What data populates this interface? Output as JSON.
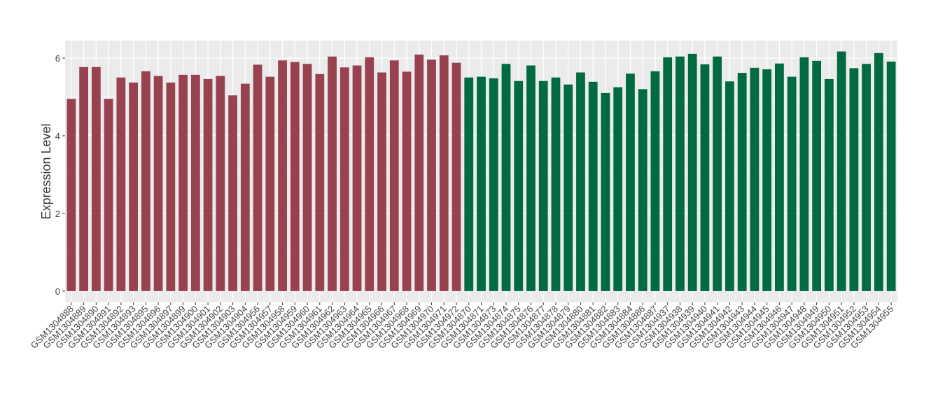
{
  "chart_data": {
    "type": "bar",
    "y_label": "Expression Level",
    "ylim": [
      -0.29,
      6.45
    ],
    "yticks": [
      0,
      2,
      4,
      6
    ],
    "grid": true,
    "series": [
      {
        "color": "#984250",
        "categories": [
          "GSM1304888",
          "GSM1304889",
          "GSM1304890",
          "GSM1304891",
          "GSM1304892",
          "GSM1304893",
          "GSM1304895",
          "GSM1304896",
          "GSM1304897",
          "GSM1304899",
          "GSM1304900",
          "GSM1304901",
          "GSM1304902",
          "GSM1304903",
          "GSM1304904",
          "GSM1304956",
          "GSM1304957",
          "GSM1304958",
          "GSM1304959",
          "GSM1304960",
          "GSM1304961",
          "GSM1304962",
          "GSM1304963",
          "GSM1304964",
          "GSM1304965",
          "GSM1304966",
          "GSM1304967",
          "GSM1304968",
          "GSM1304969",
          "GSM1304970",
          "GSM1304971",
          "GSM1304972"
        ],
        "values": [
          4.95,
          5.77,
          5.77,
          4.95,
          5.5,
          5.37,
          5.66,
          5.54,
          5.37,
          5.57,
          5.57,
          5.46,
          5.54,
          5.04,
          5.34,
          5.83,
          5.52,
          5.94,
          5.9,
          5.85,
          5.59,
          6.04,
          5.76,
          5.81,
          6.02,
          5.63,
          5.94,
          5.65,
          6.09,
          5.96,
          6.07,
          5.88
        ]
      },
      {
        "color": "#006B40",
        "categories": [
          "GSM1304870",
          "GSM1304871",
          "GSM1304873",
          "GSM1304874",
          "GSM1304875",
          "GSM1304876",
          "GSM1304877",
          "GSM1304878",
          "GSM1304879",
          "GSM1304880",
          "GSM1304881",
          "GSM1304882",
          "GSM1304883",
          "GSM1304884",
          "GSM1304886",
          "GSM1304887",
          "GSM1304937",
          "GSM1304938",
          "GSM1304939",
          "GSM1304940",
          "GSM1304941",
          "GSM1304942",
          "GSM1304943",
          "GSM1304944",
          "GSM1304945",
          "GSM1304946",
          "GSM1304947",
          "GSM1304948",
          "GSM1304949",
          "GSM1304950",
          "GSM1304951",
          "GSM1304952",
          "GSM1304953",
          "GSM1304954",
          "GSM1304955"
        ],
        "values": [
          5.5,
          5.52,
          5.48,
          5.85,
          5.41,
          5.81,
          5.41,
          5.5,
          5.32,
          5.63,
          5.39,
          5.1,
          5.25,
          5.6,
          5.2,
          5.66,
          6.02,
          6.04,
          6.11,
          5.84,
          6.04,
          5.4,
          5.62,
          5.75,
          5.71,
          5.86,
          5.52,
          6.02,
          5.93,
          5.46,
          6.17,
          5.74,
          5.85,
          6.13,
          5.91
        ]
      }
    ]
  }
}
